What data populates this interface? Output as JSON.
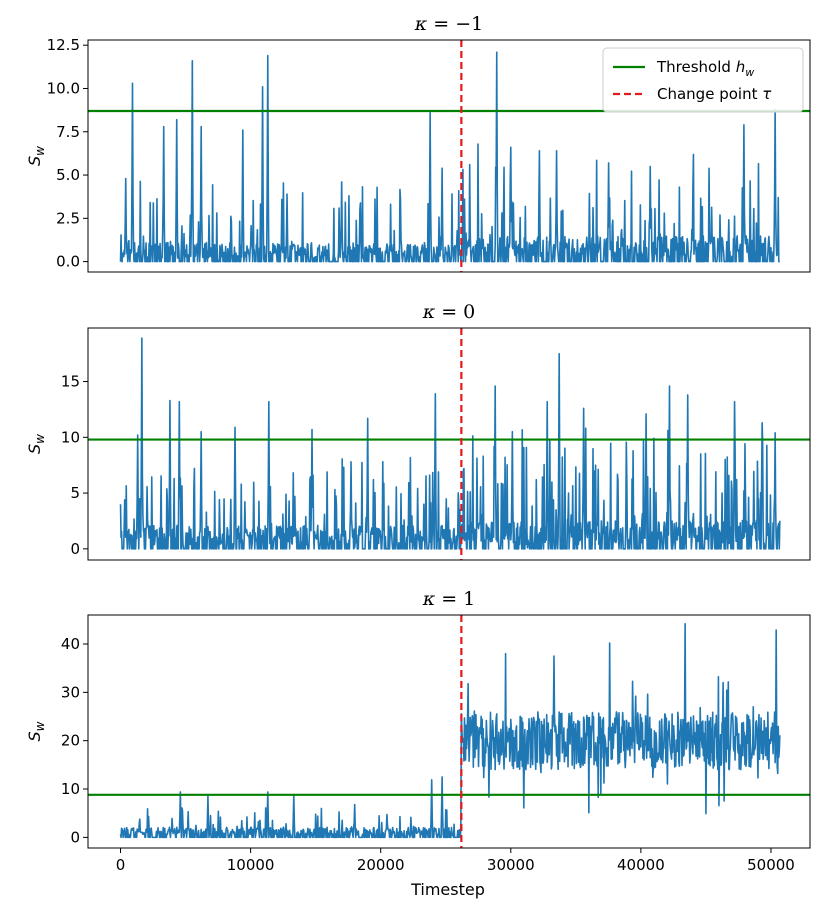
{
  "chart_data": {
    "type": "line",
    "xlabel": "Timestep",
    "xlim": [
      -2500,
      53000
    ],
    "xticks": [
      0,
      10000,
      20000,
      30000,
      40000,
      50000
    ],
    "xtick_labels": [
      "0",
      "10000",
      "20000",
      "30000",
      "40000",
      "50000"
    ],
    "change_point": 26200,
    "legend": {
      "placement": "top-right",
      "entries": [
        {
          "label": "Threshold h_w",
          "label_main": "Threshold ",
          "label_var": "h",
          "label_sub": "w",
          "color": "#008000",
          "style": "solid"
        },
        {
          "label": "Change point τ",
          "label_main": "Change point ",
          "label_var": "τ",
          "color": "#e41a1c",
          "style": "dashed"
        }
      ]
    },
    "series_color": "#1f77b4",
    "panels": [
      {
        "title": "κ = −1",
        "title_var": "κ",
        "title_eq": " = −1",
        "ylabel": "S_w",
        "ylabel_var": "S",
        "ylabel_sub": "w",
        "ylim": [
          -0.6,
          12.8
        ],
        "yticks": [
          0,
          2.5,
          5,
          7.5,
          10,
          12.5
        ],
        "ytick_labels": [
          "0.0",
          "2.5",
          "5.0",
          "7.5",
          "10.0",
          "12.5"
        ],
        "threshold": 8.7,
        "x_end": 50700,
        "pre": {
          "base": 0.2,
          "noise": 0.9,
          "spike_prob": 0.1,
          "spike_max": 4.0
        },
        "post": {
          "base": 0.3,
          "noise": 1.2,
          "spike_prob": 0.12,
          "spike_max": 5.5
        },
        "peaks": [
          [
            400,
            4.8
          ],
          [
            900,
            10.3
          ],
          [
            3300,
            7.8
          ],
          [
            4300,
            8.2
          ],
          [
            5500,
            11.6
          ],
          [
            6200,
            7.8
          ],
          [
            9400,
            7.6
          ],
          [
            10900,
            10.1
          ],
          [
            11300,
            11.9
          ],
          [
            12800,
            3.9
          ],
          [
            17000,
            4.6
          ],
          [
            21500,
            3.6
          ],
          [
            23800,
            8.6
          ],
          [
            24700,
            5.4
          ],
          [
            28900,
            12.1
          ],
          [
            30000,
            6.6
          ],
          [
            32200,
            6.4
          ],
          [
            33500,
            6.4
          ],
          [
            37500,
            5.7
          ],
          [
            40700,
            5.5
          ],
          [
            47900,
            7.9
          ],
          [
            50300,
            8.8
          ]
        ],
        "legend": true
      },
      {
        "title": "κ = 0",
        "title_var": "κ",
        "title_eq": " = 0",
        "ylabel": "S_w",
        "ylabel_var": "S",
        "ylabel_sub": "w",
        "ylim": [
          -1.0,
          19.8
        ],
        "yticks": [
          0,
          5,
          10,
          15
        ],
        "ytick_labels": [
          "0",
          "5",
          "10",
          "15"
        ],
        "threshold": 9.8,
        "x_end": 50700,
        "pre": {
          "base": 0.3,
          "noise": 1.8,
          "spike_prob": 0.14,
          "spike_max": 7.0
        },
        "post": {
          "base": 0.4,
          "noise": 2.2,
          "spike_prob": 0.16,
          "spike_max": 9.0
        },
        "peaks": [
          [
            300,
            4.4
          ],
          [
            1300,
            10.2
          ],
          [
            1650,
            18.9
          ],
          [
            3800,
            13.3
          ],
          [
            4500,
            13.2
          ],
          [
            6200,
            10.5
          ],
          [
            8800,
            10.9
          ],
          [
            11400,
            13.2
          ],
          [
            14700,
            10.7
          ],
          [
            17700,
            7.8
          ],
          [
            19000,
            11.7
          ],
          [
            24200,
            13.9
          ],
          [
            28800,
            14.6
          ],
          [
            30100,
            10.5
          ],
          [
            32800,
            13.2
          ],
          [
            33700,
            17.5
          ],
          [
            35600,
            12.6
          ],
          [
            40400,
            12.1
          ],
          [
            42200,
            14.6
          ],
          [
            43600,
            13.8
          ],
          [
            47200,
            13.2
          ],
          [
            49300,
            11.3
          ],
          [
            50300,
            10.4
          ]
        ],
        "legend": false
      },
      {
        "title": "κ = 1",
        "title_var": "κ",
        "title_eq": " = 1",
        "ylabel": "S_w",
        "ylabel_var": "S",
        "ylabel_sub": "w",
        "ylim": [
          -2.2,
          46.0
        ],
        "yticks": [
          0,
          10,
          20,
          30,
          40
        ],
        "ytick_labels": [
          "0",
          "10",
          "20",
          "30",
          "40"
        ],
        "threshold": 8.8,
        "x_end": 50700,
        "pre": {
          "base": 0.5,
          "noise": 1.6,
          "spike_prob": 0.1,
          "spike_max": 5.0
        },
        "post": {
          "base": 20.0,
          "noise": 6.0,
          "spike_prob": 0.08,
          "spike_max": 12.0
        },
        "peaks": [
          [
            4600,
            9.4
          ],
          [
            6700,
            8.5
          ],
          [
            11300,
            9.4
          ],
          [
            13300,
            8.8
          ],
          [
            18000,
            6.8
          ],
          [
            23900,
            11.9
          ],
          [
            24700,
            12.5
          ],
          [
            29600,
            38.0
          ],
          [
            33300,
            37.5
          ],
          [
            37600,
            40.2
          ],
          [
            43400,
            44.2
          ],
          [
            50400,
            42.9
          ],
          [
            31000,
            6.1
          ],
          [
            36000,
            5.1
          ],
          [
            45000,
            4.9
          ]
        ],
        "legend": false
      }
    ]
  }
}
